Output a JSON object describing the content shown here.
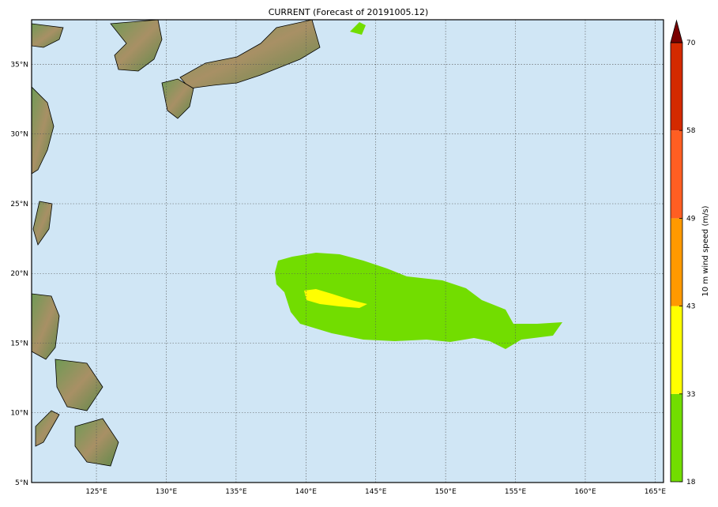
{
  "title": "CURRENT (Forecast of 20191005.12)",
  "map": {
    "extent": {
      "lon": [
        120.36,
        165.6
      ],
      "lat": [
        5,
        38.2
      ]
    },
    "ocean_color": "#d0e6f5",
    "meridians": [
      125,
      130,
      135,
      140,
      145,
      150,
      155,
      160,
      165
    ],
    "meridian_labels": [
      "125°E",
      "130°E",
      "135°E",
      "140°E",
      "145°E",
      "150°E",
      "155°E",
      "160°E",
      "165°E"
    ],
    "parallels": [
      5,
      10,
      15,
      20,
      25,
      30,
      35
    ],
    "parallel_labels": [
      "5°N",
      "10°N",
      "15°N",
      "20°N",
      "25°N",
      "30°N",
      "35°N"
    ]
  },
  "colorbar": {
    "label": "10 m wind speed (m/s)",
    "levels": [
      "18",
      "33",
      "43",
      "49",
      "58",
      "70"
    ],
    "colors": [
      "#72dd00",
      "#ffff00",
      "#ff9900",
      "#ff5e22",
      "#d42a00"
    ],
    "extend_color": "#7a0000"
  },
  "wind_colors": {
    "band_18_33": "#72dd00",
    "band_33_43": "#ffff00"
  }
}
